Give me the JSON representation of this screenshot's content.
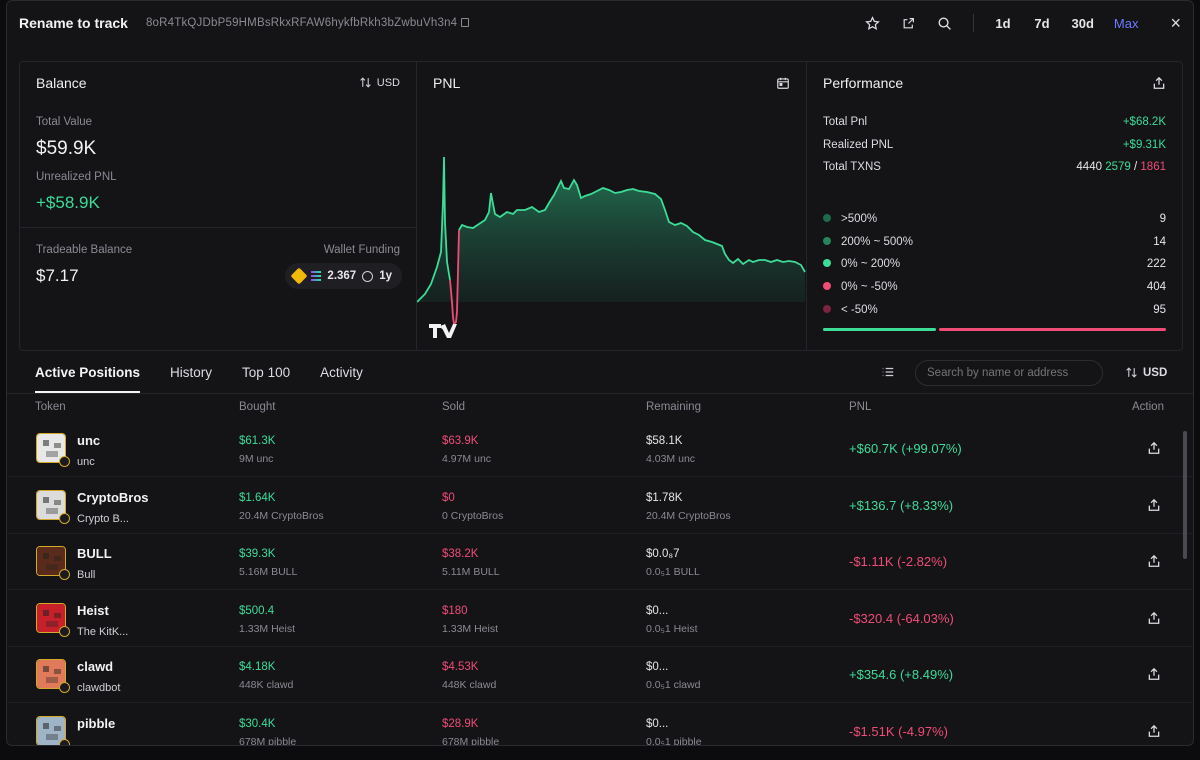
{
  "header": {
    "title": "Rename to track",
    "address": "8oR4TkQJDbP59HMBsRkxRFAW6hykfbRkh3bZwbuVh3n4",
    "periods": [
      "1d",
      "7d",
      "30d",
      "Max"
    ],
    "active_period": "Max",
    "close_glyph": "×"
  },
  "balance": {
    "title": "Balance",
    "currency": "USD",
    "total_value_label": "Total Value",
    "total_value": "$59.9K",
    "unrealized_label": "Unrealized PNL",
    "unrealized_value": "+$58.9K",
    "tradeable_label": "Tradeable Balance",
    "tradeable_value": "$7.17",
    "wallet_funding_label": "Wallet Funding",
    "funding_amount": "2.367",
    "funding_age": "1y"
  },
  "pnl": {
    "title": "PNL",
    "logo_text": "TV"
  },
  "performance": {
    "title": "Performance",
    "total_pnl_label": "Total Pnl",
    "total_pnl": "+$68.2K",
    "realized_label": "Realized PNL",
    "realized": "+$9.31K",
    "txns_label": "Total TXNS",
    "txns_total": "4440",
    "txns_buys": "2579",
    "txns_sep": "/",
    "txns_sells": "1861",
    "buckets": [
      {
        "label": ">500%",
        "count": "9",
        "color": "#1f6a4a"
      },
      {
        "label": "200% ~ 500%",
        "count": "14",
        "color": "#28845c"
      },
      {
        "label": "0% ~ 200%",
        "count": "222",
        "color": "#3ddc97"
      },
      {
        "label": "0% ~ -50%",
        "count": "404",
        "color": "#ef4c76"
      },
      {
        "label": "< -50%",
        "count": "95",
        "color": "#7a2440"
      }
    ],
    "win_color": "#3ddc97",
    "loss_color": "#ef4c76"
  },
  "tabs": [
    "Active Positions",
    "History",
    "Top 100",
    "Activity"
  ],
  "active_tab": "Active Positions",
  "search_placeholder": "Search by name or address",
  "table_currency": "USD",
  "columns": [
    "Token",
    "Bought",
    "Sold",
    "Remaining",
    "PNL",
    "Action"
  ],
  "positions": [
    {
      "symbol": "unc",
      "name": "unc",
      "bought": "$61.3K",
      "bought_amt": "9M unc",
      "sold": "$63.9K",
      "sold_amt": "4.97M unc",
      "remaining": "$58.1K",
      "remaining_amt": "4.03M unc",
      "pnl": "+$60.7K (+99.07%)",
      "positive": true,
      "avatar_color": "#e8e8e8"
    },
    {
      "symbol": "CryptoBros",
      "name": "Crypto B...",
      "bought": "$1.64K",
      "bought_amt": "20.4M CryptoBros",
      "sold": "$0",
      "sold_amt": "0 CryptoBros",
      "remaining": "$1.78K",
      "remaining_amt": "20.4M CryptoBros",
      "pnl": "+$136.7 (+8.33%)",
      "positive": true,
      "avatar_color": "#dcdcdc"
    },
    {
      "symbol": "BULL",
      "name": "Bull",
      "bought": "$39.3K",
      "bought_amt": "5.16M BULL",
      "sold": "$38.2K",
      "sold_amt": "5.11M BULL",
      "remaining": "$0.0₈7",
      "remaining_amt": "0.0₅1 BULL",
      "pnl": "-$1.11K (-2.82%)",
      "positive": false,
      "avatar_color": "#5a2a1a"
    },
    {
      "symbol": "Heist",
      "name": "The KitK...",
      "bought": "$500.4",
      "bought_amt": "1.33M Heist",
      "sold": "$180",
      "sold_amt": "1.33M Heist",
      "remaining": "$0...",
      "remaining_amt": "0.0₅1 Heist",
      "pnl": "-$320.4 (-64.03%)",
      "positive": false,
      "avatar_color": "#c8202a"
    },
    {
      "symbol": "clawd",
      "name": "clawdbot",
      "bought": "$4.18K",
      "bought_amt": "448K clawd",
      "sold": "$4.53K",
      "sold_amt": "448K clawd",
      "remaining": "$0...",
      "remaining_amt": "0.0₅1 clawd",
      "pnl": "+$354.6 (+8.49%)",
      "positive": true,
      "avatar_color": "#e07a5a"
    },
    {
      "symbol": "pibble",
      "name": "",
      "bought": "$30.4K",
      "bought_amt": "678M pibble",
      "sold": "$28.9K",
      "sold_amt": "678M pibble",
      "remaining": "$0...",
      "remaining_amt": "0.0₅1 pibble",
      "pnl": "-$1.51K (-4.97%)",
      "positive": false,
      "avatar_color": "#9fb4c6"
    }
  ]
}
